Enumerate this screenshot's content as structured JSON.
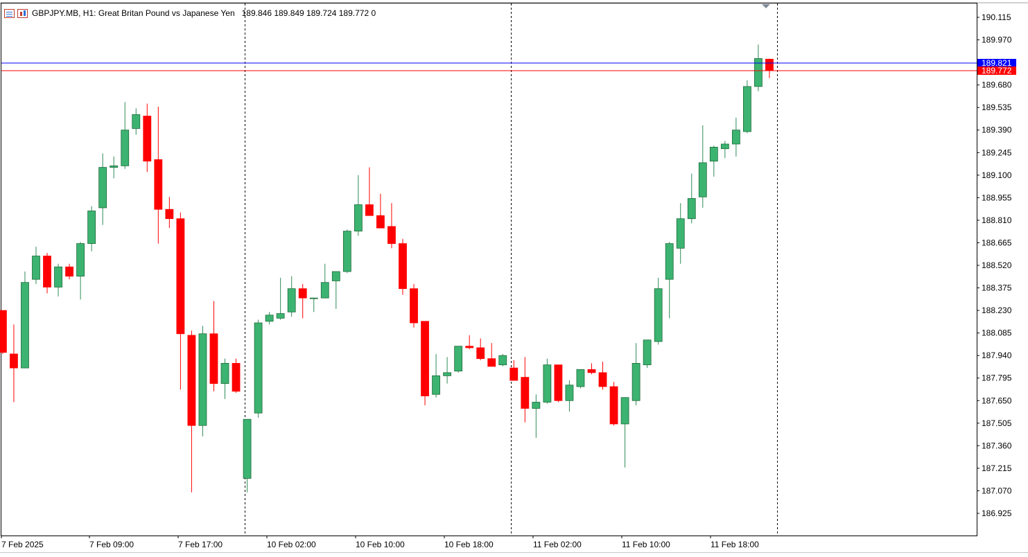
{
  "header": {
    "symbol_line": "GBPJPY.MB, H1:  Great Britan Pound vs Japanese Yen",
    "ohlc_line": "189.846 189.849 189.724 189.772  0"
  },
  "colors": {
    "bull": "#3cb371",
    "bear": "#ff0000",
    "bid_line": "#0000ff",
    "ask_line": "#ff0000",
    "grid_sep": "#000000",
    "axis": "#000000",
    "background": "#ffffff"
  },
  "price_labels": {
    "bid": "189.821",
    "last": "189.772"
  },
  "chart_data": {
    "type": "candlestick",
    "timeframe": "H1",
    "ylim": [
      186.87,
      190.14
    ],
    "y_ticks": [
      "190.115",
      "189.970",
      "189.680",
      "189.535",
      "189.390",
      "189.245",
      "189.100",
      "188.955",
      "188.810",
      "188.665",
      "188.520",
      "188.375",
      "188.230",
      "188.085",
      "187.940",
      "187.795",
      "187.650",
      "187.505",
      "187.360",
      "187.215",
      "187.070",
      "186.925"
    ],
    "x_ticks": [
      "7 Feb 2025",
      "7 Feb 09:00",
      "7 Feb 17:00",
      "10 Feb 02:00",
      "10 Feb 10:00",
      "10 Feb 18:00",
      "11 Feb 02:00",
      "11 Feb 10:00",
      "11 Feb 18:00"
    ],
    "candles": [
      {
        "o": 188.23,
        "h": 188.23,
        "l": 187.95,
        "c": 187.96
      },
      {
        "o": 187.95,
        "h": 188.14,
        "l": 187.64,
        "c": 187.86
      },
      {
        "o": 187.86,
        "h": 188.48,
        "l": 187.86,
        "c": 188.41
      },
      {
        "o": 188.43,
        "h": 188.64,
        "l": 188.4,
        "c": 188.58
      },
      {
        "o": 188.58,
        "h": 188.6,
        "l": 188.34,
        "c": 188.38
      },
      {
        "o": 188.38,
        "h": 188.53,
        "l": 188.32,
        "c": 188.51
      },
      {
        "o": 188.51,
        "h": 188.53,
        "l": 188.43,
        "c": 188.45
      },
      {
        "o": 188.45,
        "h": 188.67,
        "l": 188.3,
        "c": 188.66
      },
      {
        "o": 188.66,
        "h": 188.9,
        "l": 188.61,
        "c": 188.87
      },
      {
        "o": 188.89,
        "h": 189.24,
        "l": 188.78,
        "c": 189.15
      },
      {
        "o": 189.15,
        "h": 189.22,
        "l": 189.08,
        "c": 189.16
      },
      {
        "o": 189.16,
        "h": 189.57,
        "l": 189.14,
        "c": 189.39
      },
      {
        "o": 189.4,
        "h": 189.53,
        "l": 189.36,
        "c": 189.49
      },
      {
        "o": 189.48,
        "h": 189.56,
        "l": 189.12,
        "c": 189.19
      },
      {
        "o": 189.2,
        "h": 189.54,
        "l": 188.66,
        "c": 188.88
      },
      {
        "o": 188.88,
        "h": 188.96,
        "l": 188.76,
        "c": 188.82
      },
      {
        "o": 188.82,
        "h": 188.86,
        "l": 187.72,
        "c": 188.08
      },
      {
        "o": 188.07,
        "h": 188.1,
        "l": 187.06,
        "c": 187.49
      },
      {
        "o": 187.49,
        "h": 188.13,
        "l": 187.42,
        "c": 188.08
      },
      {
        "o": 188.08,
        "h": 188.29,
        "l": 187.71,
        "c": 187.76
      },
      {
        "o": 187.76,
        "h": 187.92,
        "l": 187.66,
        "c": 187.89
      },
      {
        "o": 187.89,
        "h": 187.92,
        "l": 187.7,
        "c": 187.71
      },
      {
        "o": 187.15,
        "h": 187.53,
        "l": 187.06,
        "c": 187.53
      },
      {
        "o": 187.57,
        "h": 188.17,
        "l": 187.54,
        "c": 188.15
      },
      {
        "o": 188.16,
        "h": 188.22,
        "l": 188.14,
        "c": 188.2
      },
      {
        "o": 188.18,
        "h": 188.44,
        "l": 188.17,
        "c": 188.21
      },
      {
        "o": 188.22,
        "h": 188.45,
        "l": 188.19,
        "c": 188.37
      },
      {
        "o": 188.37,
        "h": 188.4,
        "l": 188.18,
        "c": 188.31
      },
      {
        "o": 188.31,
        "h": 188.31,
        "l": 188.22,
        "c": 188.31
      },
      {
        "o": 188.31,
        "h": 188.53,
        "l": 188.31,
        "c": 188.41
      },
      {
        "o": 188.42,
        "h": 188.47,
        "l": 188.24,
        "c": 188.48
      },
      {
        "o": 188.48,
        "h": 188.75,
        "l": 188.47,
        "c": 188.74
      },
      {
        "o": 188.74,
        "h": 189.1,
        "l": 188.71,
        "c": 188.91
      },
      {
        "o": 188.91,
        "h": 189.15,
        "l": 188.85,
        "c": 188.84
      },
      {
        "o": 188.84,
        "h": 188.98,
        "l": 188.78,
        "c": 188.76
      },
      {
        "o": 188.77,
        "h": 188.92,
        "l": 188.63,
        "c": 188.66
      },
      {
        "o": 188.66,
        "h": 188.69,
        "l": 188.33,
        "c": 188.37
      },
      {
        "o": 188.37,
        "h": 188.4,
        "l": 188.12,
        "c": 188.15
      },
      {
        "o": 188.16,
        "h": 188.16,
        "l": 187.62,
        "c": 187.68
      },
      {
        "o": 187.69,
        "h": 187.95,
        "l": 187.67,
        "c": 187.81
      },
      {
        "o": 187.81,
        "h": 187.93,
        "l": 187.76,
        "c": 187.83
      },
      {
        "o": 187.84,
        "h": 188.0,
        "l": 187.83,
        "c": 188.0
      },
      {
        "o": 188.0,
        "h": 188.07,
        "l": 187.98,
        "c": 187.99
      },
      {
        "o": 187.99,
        "h": 188.05,
        "l": 187.91,
        "c": 187.92
      },
      {
        "o": 187.92,
        "h": 188.02,
        "l": 187.87,
        "c": 187.87
      },
      {
        "o": 187.88,
        "h": 187.95,
        "l": 187.87,
        "c": 187.94
      },
      {
        "o": 187.86,
        "h": 187.91,
        "l": 187.78,
        "c": 187.78
      },
      {
        "o": 187.8,
        "h": 187.93,
        "l": 187.51,
        "c": 187.6
      },
      {
        "o": 187.6,
        "h": 187.69,
        "l": 187.41,
        "c": 187.64
      },
      {
        "o": 187.64,
        "h": 187.92,
        "l": 187.63,
        "c": 187.88
      },
      {
        "o": 187.88,
        "h": 187.88,
        "l": 187.64,
        "c": 187.65
      },
      {
        "o": 187.65,
        "h": 187.78,
        "l": 187.58,
        "c": 187.75
      },
      {
        "o": 187.74,
        "h": 187.85,
        "l": 187.73,
        "c": 187.85
      },
      {
        "o": 187.85,
        "h": 187.89,
        "l": 187.82,
        "c": 187.83
      },
      {
        "o": 187.83,
        "h": 187.9,
        "l": 187.72,
        "c": 187.74
      },
      {
        "o": 187.74,
        "h": 187.77,
        "l": 187.49,
        "c": 187.5
      },
      {
        "o": 187.5,
        "h": 187.67,
        "l": 187.22,
        "c": 187.67
      },
      {
        "o": 187.65,
        "h": 188.02,
        "l": 187.62,
        "c": 187.89
      },
      {
        "o": 187.88,
        "h": 188.04,
        "l": 187.86,
        "c": 188.04
      },
      {
        "o": 188.03,
        "h": 188.44,
        "l": 188.01,
        "c": 188.37
      },
      {
        "o": 188.43,
        "h": 188.67,
        "l": 188.18,
        "c": 188.66
      },
      {
        "o": 188.63,
        "h": 188.92,
        "l": 188.53,
        "c": 188.82
      },
      {
        "o": 188.82,
        "h": 189.11,
        "l": 188.79,
        "c": 188.95
      },
      {
        "o": 188.96,
        "h": 189.42,
        "l": 188.89,
        "c": 189.18
      },
      {
        "o": 189.19,
        "h": 189.29,
        "l": 189.09,
        "c": 189.28
      },
      {
        "o": 189.27,
        "h": 189.32,
        "l": 189.21,
        "c": 189.3
      },
      {
        "o": 189.3,
        "h": 189.47,
        "l": 189.22,
        "c": 189.39
      },
      {
        "o": 189.38,
        "h": 189.71,
        "l": 189.37,
        "c": 189.67
      },
      {
        "o": 189.67,
        "h": 189.94,
        "l": 189.64,
        "c": 189.85
      },
      {
        "o": 189.846,
        "h": 189.849,
        "l": 189.724,
        "c": 189.772
      }
    ]
  }
}
